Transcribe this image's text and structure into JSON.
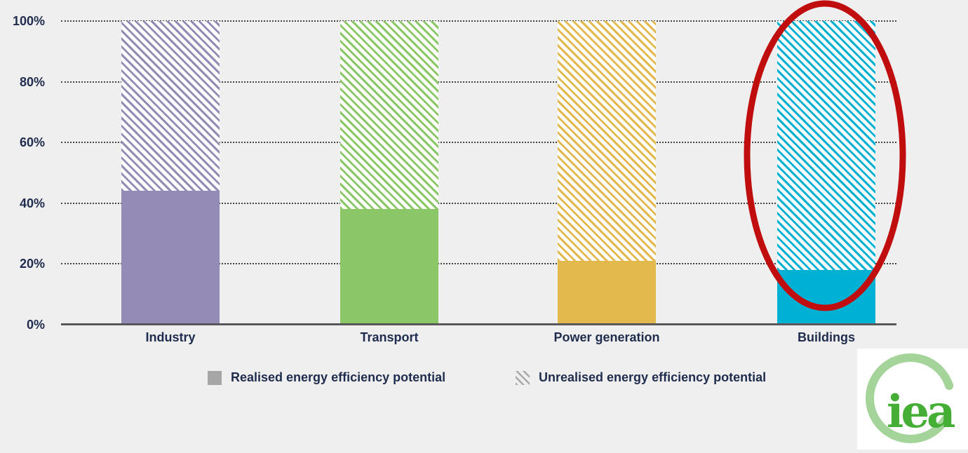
{
  "chart_data": {
    "type": "bar",
    "subtype": "stacked-100-percent",
    "title": "",
    "categories": [
      "Industry",
      "Transport",
      "Power generation",
      "Buildings"
    ],
    "series": [
      {
        "name": "Realised energy efficiency potential",
        "values": [
          44,
          38,
          21,
          18
        ]
      },
      {
        "name": "Unrealised energy efficiency potential",
        "values": [
          56,
          62,
          79,
          82
        ]
      }
    ],
    "units": "%",
    "ylim": [
      0,
      100
    ],
    "y_ticks": [
      "100%",
      "80%",
      "60%",
      "40%",
      "20%",
      "0%"
    ],
    "grid": "horizontal dotted",
    "legend_position": "bottom",
    "bar_colors": [
      "#948cb6",
      "#8bc766",
      "#e3b94e",
      "#00b1d3"
    ],
    "hatch_style": "unrealised portion drawn as white area with diagonal stripes in series colour"
  },
  "legend": {
    "realised_label": "Realised energy efficiency potential",
    "unrealised_label": "Unrealised energy efficiency potential",
    "realised_swatch_color": "#a6a6a6",
    "unrealised_swatch_color": "#a9a9a9"
  },
  "annotations": {
    "highlight": {
      "shape": "ellipse",
      "target_category": "Buildings",
      "color": "#c00d0d"
    }
  },
  "logo": {
    "text": "iea",
    "ring_color": "#a5d49b",
    "text_color": "#44ae35"
  },
  "colors": {
    "background": "#efeff0",
    "axis_line": "#58585a",
    "label_text": "#1f2c4d"
  }
}
